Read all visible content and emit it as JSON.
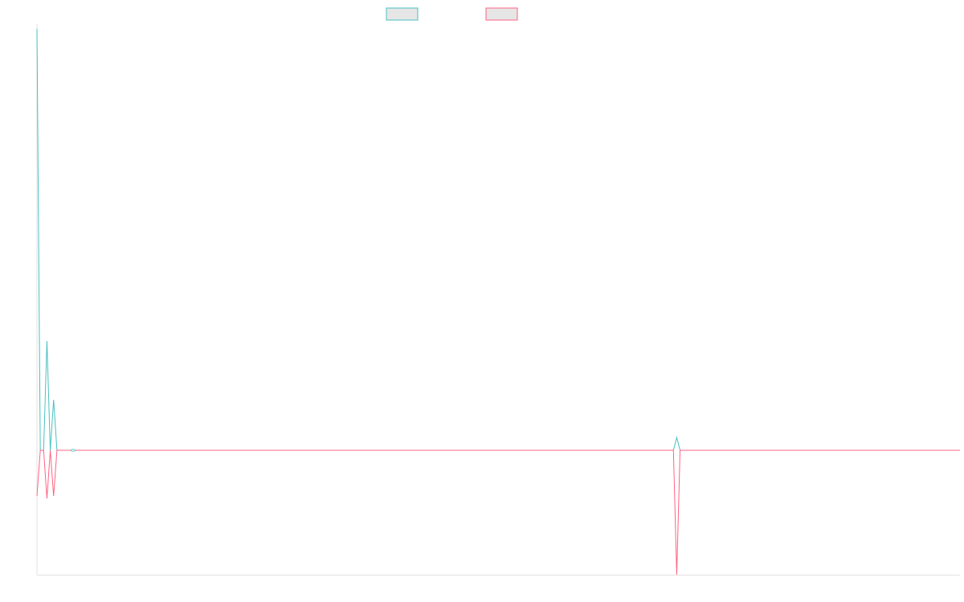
{
  "chart_data": {
    "type": "line",
    "title": "",
    "xlabel": "",
    "ylabel": "",
    "ylim": [
      -155,
      525
    ],
    "grid": false,
    "legend_placement": "top-center",
    "series": [
      {
        "color": "#4bc0c0",
        "values": [
          525,
          0,
          0,
          136,
          0,
          63,
          0,
          0,
          0,
          0,
          0,
          0,
          0,
          0,
          0,
          0,
          0,
          0,
          0,
          0,
          0,
          0,
          0,
          0,
          0,
          0,
          0,
          0,
          0,
          0,
          0,
          0,
          0,
          0,
          0,
          0,
          0,
          0,
          0,
          0,
          0,
          0,
          0,
          0,
          0,
          0,
          0,
          0,
          0,
          0,
          0,
          0,
          0,
          0,
          0,
          0,
          0,
          0,
          0,
          0,
          0,
          0,
          0,
          0,
          0,
          0,
          0,
          0,
          0,
          0,
          0,
          0,
          0,
          0,
          0,
          0,
          0,
          0,
          0,
          0,
          0,
          0,
          0,
          0,
          0,
          0,
          0,
          0,
          0,
          0,
          0,
          0,
          0,
          0,
          0,
          0,
          0,
          0,
          0,
          0,
          0,
          0,
          0,
          0,
          0,
          0,
          0,
          0,
          0,
          0,
          0,
          0,
          0,
          0,
          0,
          0,
          0,
          0,
          0,
          0,
          0,
          0,
          0,
          0,
          0,
          0,
          0,
          0,
          0,
          0,
          0,
          0,
          0,
          0,
          0,
          0,
          0,
          0,
          0,
          0,
          0,
          0,
          0,
          0,
          0,
          0,
          0,
          0,
          0,
          0,
          0,
          0,
          0,
          0,
          0,
          0,
          0,
          0,
          0,
          0,
          0,
          0,
          0,
          0,
          0,
          0,
          0,
          0,
          0,
          0,
          0,
          0,
          0,
          0,
          0,
          0,
          0,
          0,
          0,
          0,
          0,
          0,
          0,
          0,
          0,
          0,
          0,
          0,
          0,
          0,
          0,
          0,
          16,
          0,
          0,
          0,
          0,
          0,
          0,
          0,
          0,
          0,
          0,
          0,
          0,
          0,
          0,
          0,
          0,
          0,
          0,
          0,
          0,
          0,
          0,
          0,
          0,
          0,
          0,
          0,
          0,
          0,
          0,
          0,
          0,
          0,
          0,
          0,
          0,
          0,
          0,
          0,
          0,
          0,
          0,
          0,
          0,
          0,
          0,
          0,
          0,
          0,
          0,
          0,
          0,
          0,
          0,
          0,
          0,
          0,
          0,
          0,
          0,
          0,
          0,
          0,
          0,
          0,
          0,
          0,
          0,
          0,
          0,
          0,
          0,
          0,
          0,
          0,
          0,
          0,
          0,
          0,
          0,
          0,
          0,
          0,
          0,
          0
        ]
      },
      {
        "color": "#ff6384",
        "values": [
          -57,
          0,
          0,
          -60,
          0,
          -57,
          0,
          0,
          0,
          0,
          0,
          0,
          0,
          0,
          0,
          0,
          0,
          0,
          0,
          0,
          0,
          0,
          0,
          0,
          0,
          0,
          0,
          0,
          0,
          0,
          0,
          0,
          0,
          0,
          0,
          0,
          0,
          0,
          0,
          0,
          0,
          0,
          0,
          0,
          0,
          0,
          0,
          0,
          0,
          0,
          0,
          0,
          0,
          0,
          0,
          0,
          0,
          0,
          0,
          0,
          0,
          0,
          0,
          0,
          0,
          0,
          0,
          0,
          0,
          0,
          0,
          0,
          0,
          0,
          0,
          0,
          0,
          0,
          0,
          0,
          0,
          0,
          0,
          0,
          0,
          0,
          0,
          0,
          0,
          0,
          0,
          0,
          0,
          0,
          0,
          0,
          0,
          0,
          0,
          0,
          0,
          0,
          0,
          0,
          0,
          0,
          0,
          0,
          0,
          0,
          0,
          0,
          0,
          0,
          0,
          0,
          0,
          0,
          0,
          0,
          0,
          0,
          0,
          0,
          0,
          0,
          0,
          0,
          0,
          0,
          0,
          0,
          0,
          0,
          0,
          0,
          0,
          0,
          0,
          0,
          0,
          0,
          0,
          0,
          0,
          0,
          0,
          0,
          0,
          0,
          0,
          0,
          0,
          0,
          0,
          0,
          0,
          0,
          0,
          0,
          0,
          0,
          0,
          0,
          0,
          0,
          0,
          0,
          0,
          0,
          0,
          0,
          0,
          0,
          0,
          0,
          0,
          0,
          0,
          0,
          0,
          0,
          0,
          0,
          0,
          0,
          0,
          0,
          0,
          0,
          0,
          0,
          -155,
          0,
          0,
          0,
          0,
          0,
          0,
          0,
          0,
          0,
          0,
          0,
          0,
          0,
          0,
          0,
          0,
          0,
          0,
          0,
          0,
          0,
          0,
          0,
          0,
          0,
          0,
          0,
          0,
          0,
          0,
          0,
          0,
          0,
          0,
          0,
          0,
          0,
          0,
          0,
          0,
          0,
          0,
          0,
          0,
          0,
          0,
          0,
          0,
          0,
          0,
          0,
          0,
          0,
          0,
          0,
          0,
          0,
          0,
          0,
          0,
          0,
          0,
          0,
          0,
          0,
          0,
          0,
          0,
          0,
          0,
          0,
          0,
          0,
          0,
          0,
          0,
          0,
          0,
          0,
          0,
          0,
          0,
          0,
          0,
          0
        ]
      }
    ]
  }
}
